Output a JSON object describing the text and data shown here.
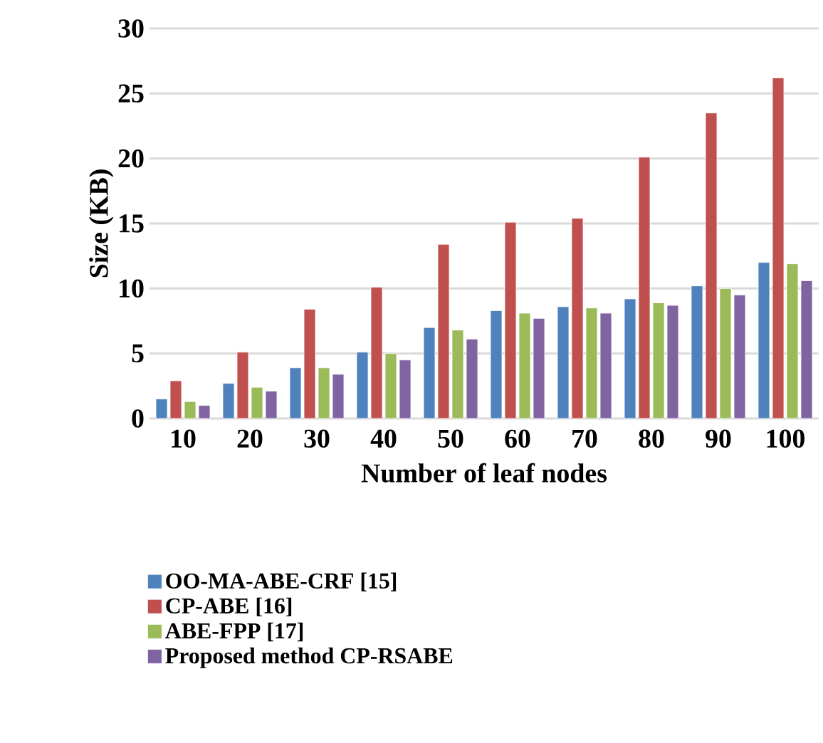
{
  "chart_data": {
    "type": "bar",
    "xlabel": "Number of leaf nodes",
    "ylabel": "Size (KB)",
    "categories": [
      "10",
      "20",
      "30",
      "40",
      "50",
      "60",
      "70",
      "80",
      "90",
      "100"
    ],
    "series": [
      {
        "name": "OO-MA-ABE-CRF [15]",
        "color": "#4f81bd",
        "values": [
          1.5,
          2.7,
          3.9,
          5.1,
          7.0,
          8.3,
          8.6,
          9.2,
          10.2,
          12.0
        ]
      },
      {
        "name": "CP-ABE [16]",
        "color": "#c0504d",
        "values": [
          2.9,
          5.1,
          8.4,
          10.1,
          13.4,
          15.1,
          15.4,
          20.1,
          23.5,
          26.2
        ]
      },
      {
        "name": "ABE-FPP [17]",
        "color": "#9bbb59",
        "values": [
          1.3,
          2.4,
          3.9,
          5.0,
          6.8,
          8.1,
          8.5,
          8.9,
          10.0,
          11.9
        ]
      },
      {
        "name": "Proposed method CP-RSABE",
        "color": "#8064a2",
        "values": [
          1.0,
          2.1,
          3.4,
          4.5,
          6.1,
          7.7,
          8.1,
          8.7,
          9.5,
          10.6
        ]
      }
    ],
    "ylim": [
      0,
      30
    ],
    "yticks": [
      0,
      5,
      10,
      15,
      20,
      25,
      30
    ],
    "grid": "y",
    "legend": "bottom"
  }
}
